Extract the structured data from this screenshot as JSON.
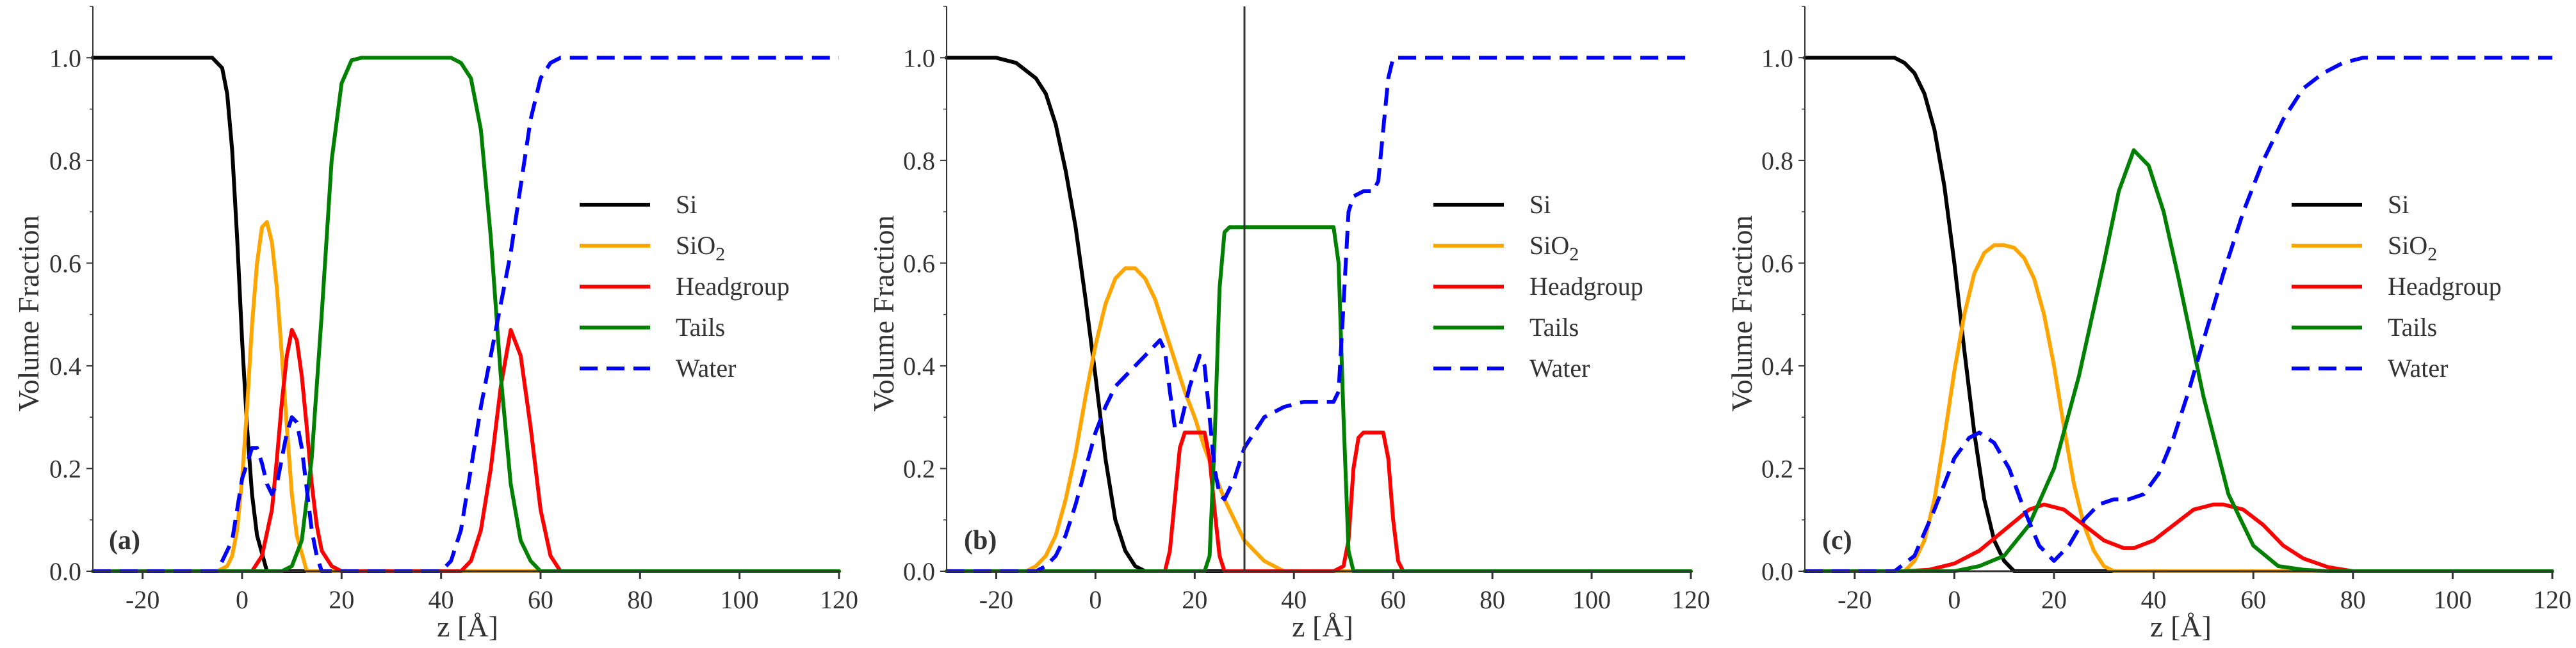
{
  "colors": {
    "Si": "#000000",
    "SiO2": "#FFA500",
    "Headgroup": "#FF0000",
    "Tails": "#008000",
    "Water": "#0000FF",
    "axis": "#333333"
  },
  "chart_data": [
    {
      "type": "line",
      "panel_label": "(a)",
      "xlabel": "z [Å]",
      "ylabel": "Volume Fraction",
      "xlim": [
        -30,
        120
      ],
      "ylim": [
        0,
        1.1
      ],
      "xticks": [
        -20,
        0,
        20,
        40,
        60,
        80,
        100,
        120
      ],
      "yticks": [
        0.0,
        0.2,
        0.4,
        0.6,
        0.8,
        1.0
      ],
      "xtick_labels": [
        "-20",
        "0",
        "20",
        "40",
        "60",
        "80",
        "100",
        "120"
      ],
      "ytick_labels": [
        "0.0",
        "0.2",
        "0.4",
        "0.6",
        "0.8",
        "1.0"
      ],
      "legend": "center-right",
      "series": [
        {
          "name": "Si",
          "label": "Si",
          "color_key": "Si",
          "dashed": false,
          "x": [
            -30,
            -6,
            -4,
            -3,
            -2,
            -1,
            0,
            1,
            2,
            3,
            5,
            120
          ],
          "y": [
            1.0,
            1.0,
            0.98,
            0.93,
            0.82,
            0.65,
            0.45,
            0.28,
            0.15,
            0.07,
            0.0,
            0.0
          ]
        },
        {
          "name": "SiO2",
          "label_main": "SiO",
          "label_sub": "2",
          "color_key": "SiO2",
          "dashed": false,
          "x": [
            -30,
            -5,
            -3,
            -2,
            -1,
            0,
            1,
            2,
            3,
            4,
            5,
            6,
            7,
            8,
            9,
            10,
            11,
            13,
            120
          ],
          "y": [
            0.0,
            0.0,
            0.01,
            0.03,
            0.08,
            0.18,
            0.32,
            0.48,
            0.6,
            0.67,
            0.68,
            0.64,
            0.55,
            0.42,
            0.28,
            0.15,
            0.07,
            0.0,
            0.0
          ]
        },
        {
          "name": "Headgroup",
          "label": "Headgroup",
          "color_key": "Headgroup",
          "dashed": false,
          "x": [
            -30,
            2,
            4,
            6,
            7,
            8,
            9,
            10,
            11,
            12,
            13,
            14,
            15,
            16,
            18,
            20,
            44,
            46,
            48,
            50,
            52,
            54,
            56,
            58,
            60,
            62,
            64,
            120
          ],
          "y": [
            0.0,
            0.0,
            0.03,
            0.12,
            0.22,
            0.33,
            0.42,
            0.47,
            0.45,
            0.38,
            0.28,
            0.17,
            0.09,
            0.04,
            0.01,
            0.0,
            0.0,
            0.02,
            0.08,
            0.2,
            0.36,
            0.47,
            0.42,
            0.28,
            0.12,
            0.03,
            0.0,
            0.0
          ]
        },
        {
          "name": "Tails",
          "label": "Tails",
          "color_key": "Tails",
          "dashed": false,
          "x": [
            -30,
            8,
            10,
            12,
            14,
            16,
            18,
            20,
            22,
            24,
            42,
            44,
            46,
            48,
            50,
            52,
            54,
            56,
            58,
            60,
            62,
            64,
            120
          ],
          "y": [
            0.0,
            0.0,
            0.01,
            0.06,
            0.22,
            0.5,
            0.8,
            0.95,
            0.995,
            1.0,
            1.0,
            0.99,
            0.96,
            0.86,
            0.65,
            0.38,
            0.17,
            0.06,
            0.02,
            0.0,
            0.0,
            0.0,
            0.0
          ]
        },
        {
          "name": "Water",
          "label": "Water",
          "color_key": "Water",
          "dashed": true,
          "x": [
            -30,
            -5,
            -2,
            0,
            2,
            3,
            4,
            5,
            6,
            7,
            8,
            9,
            10,
            11,
            12,
            13,
            14,
            15,
            16,
            18,
            40,
            42,
            44,
            46,
            48,
            50,
            52,
            54,
            56,
            58,
            60,
            62,
            64,
            66,
            120
          ],
          "y": [
            0.0,
            0.0,
            0.06,
            0.18,
            0.24,
            0.24,
            0.21,
            0.17,
            0.15,
            0.17,
            0.22,
            0.27,
            0.3,
            0.29,
            0.24,
            0.16,
            0.08,
            0.03,
            0.0,
            0.0,
            0.0,
            0.02,
            0.08,
            0.2,
            0.32,
            0.42,
            0.52,
            0.62,
            0.75,
            0.88,
            0.96,
            0.99,
            1.0,
            1.0,
            1.0
          ]
        }
      ]
    },
    {
      "type": "line",
      "panel_label": "(b)",
      "xlabel": "z [Å]",
      "ylabel": "Volume Fraction",
      "xlim": [
        -30,
        120
      ],
      "ylim": [
        0,
        1.1
      ],
      "xticks": [
        -20,
        0,
        20,
        40,
        60,
        80,
        100,
        120
      ],
      "yticks": [
        0.0,
        0.2,
        0.4,
        0.6,
        0.8,
        1.0
      ],
      "xtick_labels": [
        "-20",
        "0",
        "20",
        "40",
        "60",
        "80",
        "100",
        "120"
      ],
      "ytick_labels": [
        "0.0",
        "0.2",
        "0.4",
        "0.6",
        "0.8",
        "1.0"
      ],
      "legend": "center-right",
      "series": [
        {
          "name": "Si",
          "label": "Si",
          "color_key": "Si",
          "dashed": false,
          "x": [
            -30,
            -20,
            -16,
            -12,
            -10,
            -8,
            -6,
            -4,
            -2,
            0,
            2,
            4,
            6,
            8,
            10,
            120
          ],
          "y": [
            1.0,
            1.0,
            0.99,
            0.96,
            0.93,
            0.87,
            0.78,
            0.67,
            0.53,
            0.38,
            0.22,
            0.1,
            0.04,
            0.01,
            0.0,
            0.0
          ]
        },
        {
          "name": "SiO2",
          "label_main": "SiO",
          "label_sub": "2",
          "color_key": "SiO2",
          "dashed": false,
          "x": [
            -30,
            -14,
            -12,
            -10,
            -8,
            -6,
            -4,
            -2,
            0,
            2,
            4,
            6,
            8,
            10,
            12,
            14,
            16,
            18,
            20,
            22,
            24,
            26,
            28,
            30,
            32,
            34,
            36,
            38,
            120
          ],
          "y": [
            0.0,
            0.0,
            0.01,
            0.03,
            0.07,
            0.14,
            0.23,
            0.34,
            0.44,
            0.52,
            0.57,
            0.59,
            0.59,
            0.57,
            0.53,
            0.47,
            0.41,
            0.35,
            0.3,
            0.24,
            0.19,
            0.14,
            0.1,
            0.06,
            0.04,
            0.02,
            0.01,
            0.0,
            0.0
          ]
        },
        {
          "name": "Headgroup",
          "label": "Headgroup",
          "color_key": "Headgroup",
          "dashed": false,
          "x": [
            -30,
            14,
            15,
            16,
            17,
            18,
            20,
            22,
            23,
            24,
            25,
            26,
            48,
            50,
            51,
            52,
            53,
            54,
            56,
            58,
            59,
            60,
            61,
            62,
            120
          ],
          "y": [
            0.0,
            0.0,
            0.04,
            0.14,
            0.24,
            0.27,
            0.27,
            0.27,
            0.22,
            0.12,
            0.03,
            0.0,
            0.0,
            0.01,
            0.06,
            0.2,
            0.26,
            0.27,
            0.27,
            0.27,
            0.22,
            0.1,
            0.02,
            0.0,
            0.0
          ]
        },
        {
          "name": "Tails",
          "label": "Tails",
          "color_key": "Tails",
          "dashed": false,
          "x": [
            -30,
            22,
            23,
            24,
            25,
            26,
            27,
            30,
            48,
            49,
            50,
            51,
            52,
            120
          ],
          "y": [
            0.0,
            0.0,
            0.03,
            0.25,
            0.55,
            0.66,
            0.67,
            0.67,
            0.67,
            0.6,
            0.3,
            0.04,
            0.0,
            0.0
          ]
        },
        {
          "name": "Water",
          "label": "Water",
          "color_key": "Water",
          "dashed": true,
          "x": [
            -30,
            -12,
            -10,
            -8,
            -6,
            -4,
            -2,
            0,
            2,
            4,
            6,
            8,
            10,
            12,
            13,
            14,
            15,
            16,
            17,
            18,
            19,
            20,
            21,
            22,
            23,
            24,
            25,
            26,
            28,
            30,
            34,
            38,
            42,
            46,
            48,
            49,
            50,
            51,
            52,
            54,
            56,
            57,
            58,
            59,
            60,
            61,
            62,
            70,
            120
          ],
          "y": [
            0.0,
            0.0,
            0.01,
            0.03,
            0.07,
            0.13,
            0.2,
            0.27,
            0.32,
            0.36,
            0.38,
            0.4,
            0.42,
            0.44,
            0.45,
            0.43,
            0.35,
            0.28,
            0.28,
            0.32,
            0.36,
            0.39,
            0.42,
            0.4,
            0.3,
            0.2,
            0.15,
            0.14,
            0.18,
            0.24,
            0.3,
            0.32,
            0.33,
            0.33,
            0.33,
            0.35,
            0.52,
            0.7,
            0.73,
            0.74,
            0.74,
            0.76,
            0.86,
            0.96,
            1.0,
            1.0,
            1.0,
            1.0,
            1.0
          ]
        }
      ]
    },
    {
      "type": "line",
      "panel_label": "(c)",
      "xlabel": "z [Å]",
      "ylabel": "Volume Fraction",
      "xlim": [
        -30,
        120
      ],
      "ylim": [
        0,
        1.1
      ],
      "xticks": [
        -20,
        0,
        20,
        40,
        60,
        80,
        100,
        120
      ],
      "yticks": [
        0.0,
        0.2,
        0.4,
        0.6,
        0.8,
        1.0
      ],
      "xtick_labels": [
        "-20",
        "0",
        "20",
        "40",
        "60",
        "80",
        "100",
        "120"
      ],
      "ytick_labels": [
        "0.0",
        "0.2",
        "0.4",
        "0.6",
        "0.8",
        "1.0"
      ],
      "legend": "center-right",
      "series": [
        {
          "name": "Si",
          "label": "Si",
          "color_key": "Si",
          "dashed": false,
          "x": [
            -30,
            -12,
            -10,
            -8,
            -6,
            -4,
            -2,
            0,
            2,
            4,
            6,
            8,
            10,
            12,
            120
          ],
          "y": [
            1.0,
            1.0,
            0.99,
            0.97,
            0.93,
            0.86,
            0.75,
            0.6,
            0.43,
            0.27,
            0.14,
            0.06,
            0.02,
            0.0,
            0.0
          ]
        },
        {
          "name": "SiO2",
          "label_main": "SiO",
          "label_sub": "2",
          "color_key": "SiO2",
          "dashed": false,
          "x": [
            -30,
            -10,
            -8,
            -6,
            -4,
            -2,
            0,
            2,
            4,
            6,
            8,
            10,
            12,
            14,
            16,
            18,
            20,
            22,
            24,
            26,
            28,
            30,
            32,
            120
          ],
          "y": [
            0.0,
            0.0,
            0.02,
            0.06,
            0.14,
            0.26,
            0.39,
            0.5,
            0.58,
            0.62,
            0.635,
            0.635,
            0.63,
            0.61,
            0.57,
            0.5,
            0.4,
            0.28,
            0.17,
            0.09,
            0.04,
            0.01,
            0.0,
            0.0
          ]
        },
        {
          "name": "Headgroup",
          "label": "Headgroup",
          "color_key": "Headgroup",
          "dashed": false,
          "x": [
            -30,
            -10,
            -5,
            0,
            5,
            10,
            15,
            18,
            22,
            26,
            30,
            34,
            36,
            40,
            44,
            48,
            52,
            54,
            58,
            62,
            66,
            70,
            75,
            80,
            120
          ],
          "y": [
            0.0,
            0.0,
            0.003,
            0.015,
            0.04,
            0.08,
            0.12,
            0.13,
            0.12,
            0.09,
            0.06,
            0.045,
            0.045,
            0.06,
            0.09,
            0.12,
            0.13,
            0.13,
            0.12,
            0.09,
            0.05,
            0.025,
            0.008,
            0.0,
            0.0
          ]
        },
        {
          "name": "Tails",
          "label": "Tails",
          "color_key": "Tails",
          "dashed": false,
          "x": [
            -30,
            0,
            5,
            10,
            15,
            20,
            25,
            30,
            33,
            36,
            39,
            42,
            45,
            50,
            55,
            60,
            65,
            70,
            75,
            120
          ],
          "y": [
            0.0,
            0.0,
            0.01,
            0.03,
            0.09,
            0.2,
            0.38,
            0.6,
            0.74,
            0.82,
            0.79,
            0.7,
            0.57,
            0.34,
            0.15,
            0.05,
            0.01,
            0.003,
            0.0,
            0.0
          ]
        },
        {
          "name": "Water",
          "label": "Water",
          "color_key": "Water",
          "dashed": true,
          "x": [
            -30,
            -12,
            -8,
            -4,
            0,
            3,
            5,
            8,
            11,
            14,
            17,
            20,
            23,
            26,
            29,
            32,
            35,
            38,
            41,
            44,
            47,
            50,
            54,
            58,
            62,
            66,
            70,
            74,
            78,
            82,
            120
          ],
          "y": [
            0.0,
            0.0,
            0.03,
            0.12,
            0.22,
            0.26,
            0.27,
            0.25,
            0.2,
            0.12,
            0.05,
            0.02,
            0.05,
            0.1,
            0.13,
            0.14,
            0.14,
            0.15,
            0.19,
            0.26,
            0.35,
            0.45,
            0.58,
            0.7,
            0.8,
            0.88,
            0.94,
            0.97,
            0.99,
            1.0,
            1.0
          ]
        }
      ]
    }
  ]
}
